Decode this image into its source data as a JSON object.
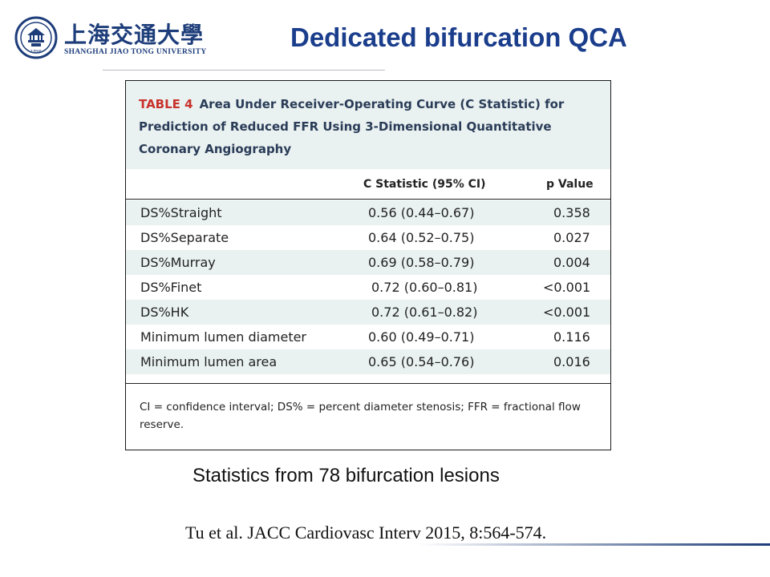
{
  "header": {
    "logo_cn": "上海交通大學",
    "logo_en": "SHANGHAI JIAO TONG UNIVERSITY",
    "seal_year": "1896"
  },
  "slide_title": "Dedicated bifurcation QCA",
  "table": {
    "label": "TABLE 4",
    "title": "Area Under Receiver-Operating Curve (C Statistic) for Prediction of Reduced FFR Using 3-Dimensional Quantitative Coronary Angiography",
    "columns": [
      "",
      "C Statistic (95% CI)",
      "p Value"
    ],
    "rows": [
      [
        "DS%Straight",
        "0.56 (0.44–0.67)",
        "0.358"
      ],
      [
        "DS%Separate",
        "0.64 (0.52–0.75)",
        "0.027"
      ],
      [
        "DS%Murray",
        "0.69 (0.58–0.79)",
        "0.004"
      ],
      [
        "DS%Finet",
        "0.72 (0.60–0.81)",
        "<0.001"
      ],
      [
        "DS%HK",
        "0.72 (0.61–0.82)",
        "<0.001"
      ],
      [
        "Minimum lumen diameter",
        "0.60 (0.49–0.71)",
        "0.116"
      ],
      [
        "Minimum lumen area",
        "0.65 (0.54–0.76)",
        "0.016"
      ]
    ],
    "footnote": "CI = confidence interval; DS% = percent diameter stenosis; FFR = fractional flow reserve."
  },
  "stats_note": "Statistics from 78 bifurcation lesions",
  "citation": "Tu et al. JACC Cardiovasc Interv 2015, 8:564-574.",
  "colors": {
    "title_blue": "#1a3d8c",
    "table_label_red": "#c8322b",
    "caption_bg": "#e9f1f1",
    "logo_blue": "#1d3d7a"
  }
}
